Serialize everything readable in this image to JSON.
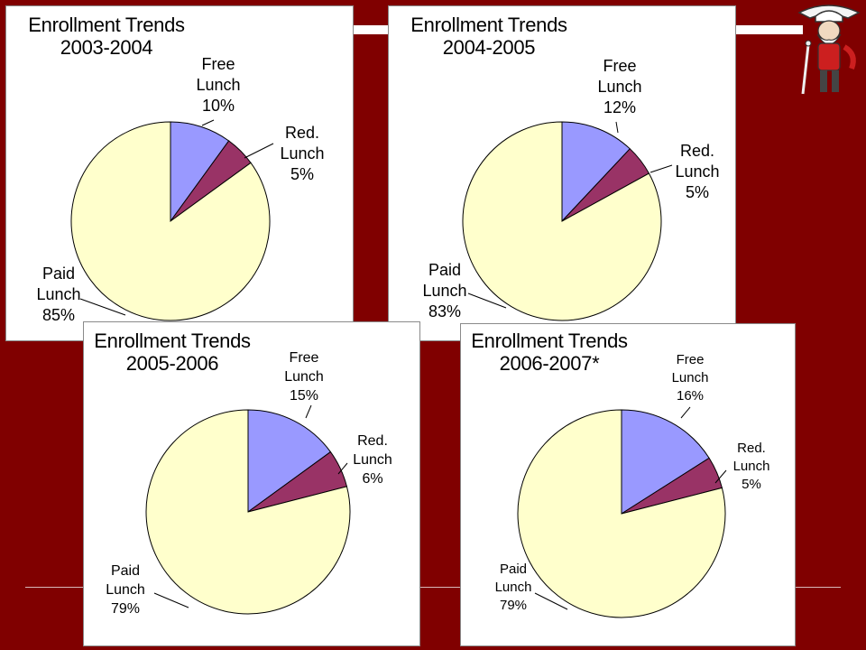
{
  "colors": {
    "background": "#800000",
    "free": "#9999ff",
    "reduced": "#993366",
    "paid": "#ffffcc",
    "slice_stroke": "#000000"
  },
  "mascot_icon": "colonel-mascot-icon",
  "chart_data": [
    {
      "type": "pie",
      "title": "Enrollment Trends",
      "subtitle": "2003-2004",
      "slices": [
        {
          "label": [
            "Free",
            "Lunch"
          ],
          "value": 10,
          "value_label": "10%"
        },
        {
          "label": [
            "Red.",
            "Lunch"
          ],
          "value": 5,
          "value_label": "5%"
        },
        {
          "label": [
            "Paid",
            "Lunch"
          ],
          "value": 85,
          "value_label": "85%"
        }
      ]
    },
    {
      "type": "pie",
      "title": "Enrollment Trends",
      "subtitle": "2004-2005",
      "slices": [
        {
          "label": [
            "Free",
            "Lunch"
          ],
          "value": 12,
          "value_label": "12%"
        },
        {
          "label": [
            "Red.",
            "Lunch"
          ],
          "value": 5,
          "value_label": "5%"
        },
        {
          "label": [
            "Paid",
            "Lunch"
          ],
          "value": 83,
          "value_label": "83%"
        }
      ]
    },
    {
      "type": "pie",
      "title": "Enrollment Trends",
      "subtitle": "2005-2006",
      "slices": [
        {
          "label": [
            "Free",
            "Lunch"
          ],
          "value": 15,
          "value_label": "15%"
        },
        {
          "label": [
            "Red.",
            "Lunch"
          ],
          "value": 6,
          "value_label": "6%"
        },
        {
          "label": [
            "Paid",
            "Lunch"
          ],
          "value": 79,
          "value_label": "79%"
        }
      ]
    },
    {
      "type": "pie",
      "title": "Enrollment Trends",
      "subtitle": "2006-2007*",
      "slices": [
        {
          "label": [
            "Free",
            "Lunch"
          ],
          "value": 16,
          "value_label": "16%"
        },
        {
          "label": [
            "Red.",
            "Lunch"
          ],
          "value": 5,
          "value_label": "5%"
        },
        {
          "label": [
            "Paid",
            "Lunch"
          ],
          "value": 79,
          "value_label": "79%"
        }
      ]
    }
  ]
}
